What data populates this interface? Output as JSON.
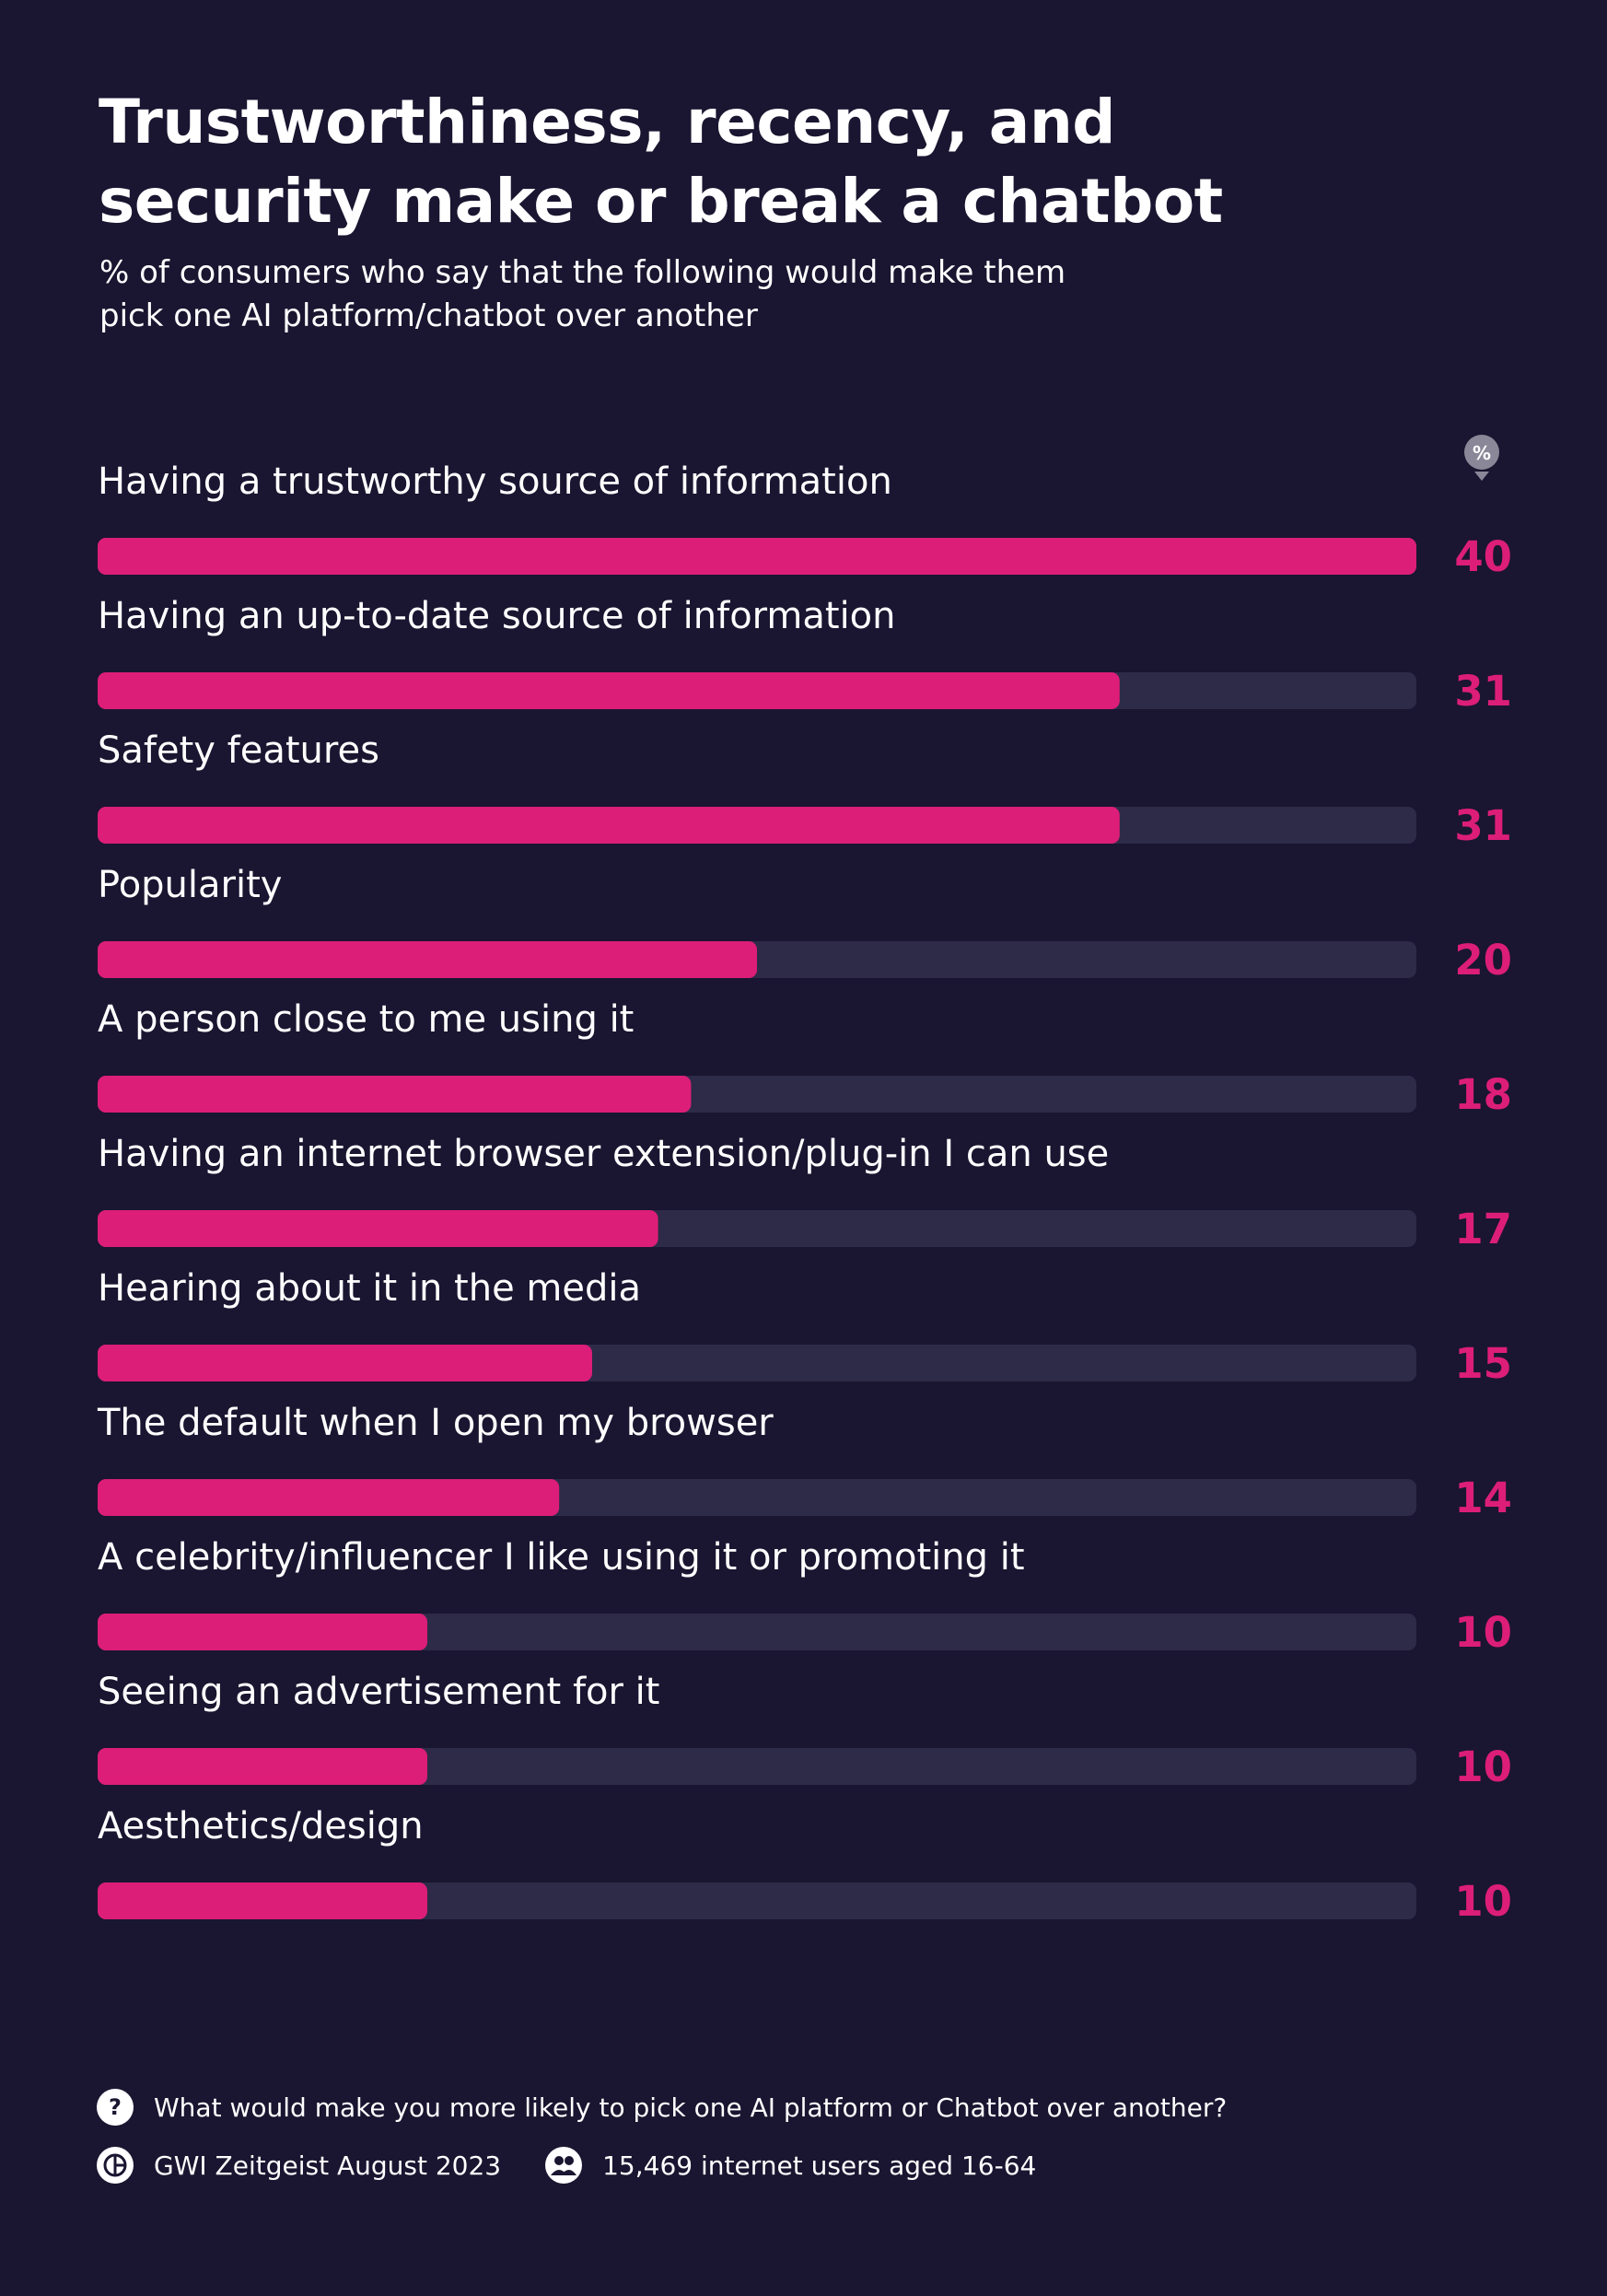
{
  "title_line1": "Trustworthiness, recency, and",
  "title_line2": "security make or break a chatbot",
  "subtitle_line1": "% of consumers who say that the following would make them",
  "subtitle_line2": "pick one AI platform/chatbot over another",
  "percent_marker": "%",
  "chart_data": {
    "type": "bar",
    "orientation": "horizontal",
    "title": "Trustworthiness, recency, and security make or break a chatbot",
    "subtitle": "% of consumers who say that the following would make them pick one AI platform/chatbot over another",
    "categories": [
      "Having a trustworthy source of information",
      "Having an up-to-date source of information",
      "Safety features",
      "Popularity",
      "A person close to me using it",
      "Having an internet browser extension/plug-in I can use",
      "Hearing about it in the media",
      "The default when I open my browser",
      "A celebrity/influencer I like using it or promoting it",
      "Seeing an advertisement for it",
      "Aesthetics/design"
    ],
    "values": [
      40,
      31,
      31,
      20,
      18,
      17,
      15,
      14,
      10,
      10,
      10
    ],
    "xlim": [
      0,
      40
    ],
    "grid": false,
    "legend": "none"
  },
  "colors": {
    "background": "#1a1530",
    "bar": "#dc1e78",
    "track": "#2e2b48",
    "value_text": "#dc1e78"
  },
  "footer": {
    "question": "What would make you more likely to pick one AI platform or Chatbot over another?",
    "source": "GWI Zeitgeist August 2023",
    "sample": "15,469 internet users aged 16-64",
    "icons": {
      "question": "question-icon",
      "source": "gwi-logo-icon",
      "sample": "people-icon"
    }
  }
}
